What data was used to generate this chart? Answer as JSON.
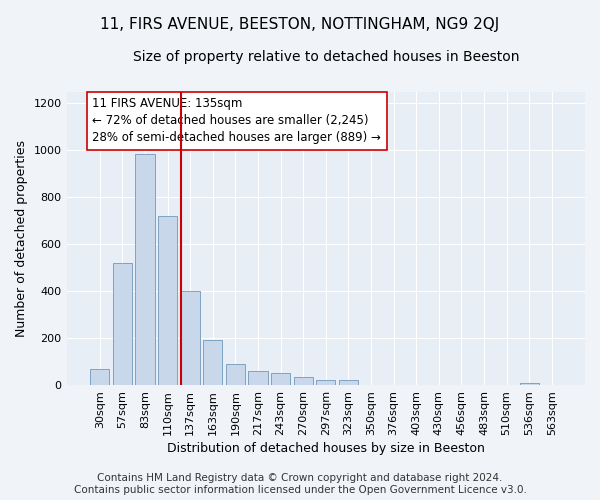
{
  "title": "11, FIRS AVENUE, BEESTON, NOTTINGHAM, NG9 2QJ",
  "subtitle": "Size of property relative to detached houses in Beeston",
  "xlabel": "Distribution of detached houses by size in Beeston",
  "ylabel": "Number of detached properties",
  "bar_color": "#c8d8ea",
  "bar_edge_color": "#7099bb",
  "background_color": "#e8eef5",
  "grid_color": "#ffffff",
  "categories": [
    "30sqm",
    "57sqm",
    "83sqm",
    "110sqm",
    "137sqm",
    "163sqm",
    "190sqm",
    "217sqm",
    "243sqm",
    "270sqm",
    "297sqm",
    "323sqm",
    "350sqm",
    "376sqm",
    "403sqm",
    "430sqm",
    "456sqm",
    "483sqm",
    "510sqm",
    "536sqm",
    "563sqm"
  ],
  "values": [
    70,
    520,
    985,
    720,
    400,
    190,
    90,
    60,
    50,
    35,
    20,
    20,
    0,
    0,
    0,
    0,
    0,
    0,
    0,
    10,
    0
  ],
  "ylim": [
    0,
    1250
  ],
  "yticks": [
    0,
    200,
    400,
    600,
    800,
    1000,
    1200
  ],
  "vline_x_index": 4,
  "vline_color": "#cc0000",
  "annotation_text": "11 FIRS AVENUE: 135sqm\n← 72% of detached houses are smaller (2,245)\n28% of semi-detached houses are larger (889) →",
  "annotation_box_color": "#ffffff",
  "annotation_box_edge": "#cc0000",
  "footer_line1": "Contains HM Land Registry data © Crown copyright and database right 2024.",
  "footer_line2": "Contains public sector information licensed under the Open Government Licence v3.0.",
  "title_fontsize": 11,
  "subtitle_fontsize": 10,
  "xlabel_fontsize": 9,
  "ylabel_fontsize": 9,
  "tick_fontsize": 8,
  "annotation_fontsize": 8.5,
  "footer_fontsize": 7.5
}
